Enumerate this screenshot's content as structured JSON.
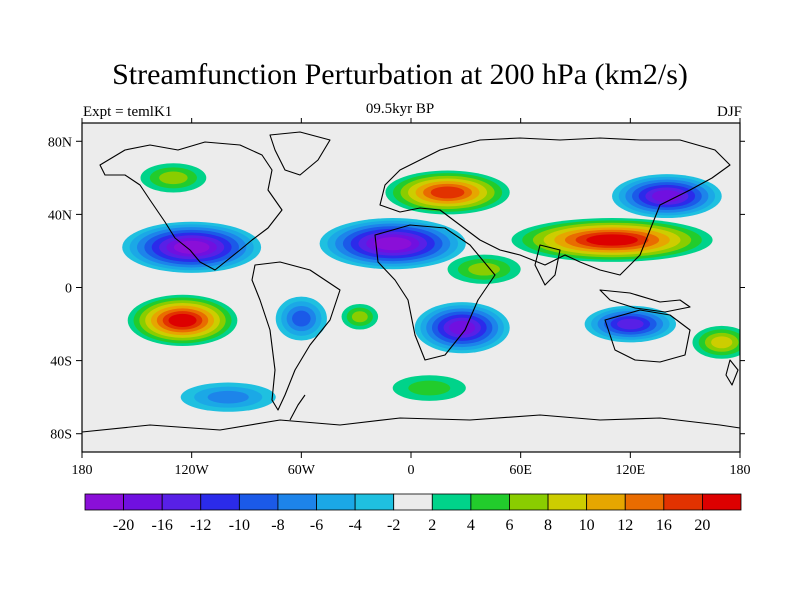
{
  "title": "Streamfunction Perturbation at 200 hPa (km2/s)",
  "subtitle_left": "Expt = temlK1",
  "subtitle_center": "09.5kyr BP",
  "subtitle_right": "DJF",
  "lon_ticks": [
    {
      "value": -180,
      "label": "180"
    },
    {
      "value": -120,
      "label": "120W"
    },
    {
      "value": -60,
      "label": "60W"
    },
    {
      "value": 0,
      "label": "0"
    },
    {
      "value": 60,
      "label": "60E"
    },
    {
      "value": 120,
      "label": "120E"
    },
    {
      "value": 180,
      "label": "180"
    }
  ],
  "lat_ticks": [
    {
      "value": 80,
      "label": "80N"
    },
    {
      "value": 40,
      "label": "40N"
    },
    {
      "value": 0,
      "label": "0"
    },
    {
      "value": -40,
      "label": "40S"
    },
    {
      "value": -80,
      "label": "80S"
    }
  ],
  "colorbar": {
    "colors": [
      "#8a0fd8",
      "#7010e0",
      "#5820e6",
      "#2b2bea",
      "#1b5ae8",
      "#1d84ea",
      "#1ba8e6",
      "#1fc0e0",
      "#ececec",
      "#00d38a",
      "#22cc2c",
      "#8acd00",
      "#cdcd00",
      "#e6a600",
      "#e96c00",
      "#e23200",
      "#dd0000"
    ],
    "labels": [
      "-20",
      "-16",
      "-12",
      "-10",
      "-8",
      "-6",
      "-4",
      "-2",
      "2",
      "4",
      "6",
      "8",
      "10",
      "12",
      "16",
      "20"
    ]
  },
  "chart_data": {
    "type": "heatmap",
    "variable": "Streamfunction Perturbation at 200 hPa (km2/s)",
    "xlim": [
      -180,
      180
    ],
    "ylim": [
      -90,
      90
    ],
    "levels": [
      -20,
      -16,
      -12,
      -10,
      -8,
      -6,
      -4,
      -2,
      2,
      4,
      6,
      8,
      10,
      12,
      16,
      20
    ],
    "features": [
      {
        "lon": -120,
        "lat": 22,
        "value": -20,
        "spread_lon": 38,
        "spread_lat": 14
      },
      {
        "lon": -10,
        "lat": 24,
        "value": -20,
        "spread_lon": 40,
        "spread_lat": 14
      },
      {
        "lon": 140,
        "lat": 50,
        "value": -18,
        "spread_lon": 30,
        "spread_lat": 12
      },
      {
        "lon": 28,
        "lat": -22,
        "value": -18,
        "spread_lon": 26,
        "spread_lat": 14
      },
      {
        "lon": 120,
        "lat": -20,
        "value": -14,
        "spread_lon": 25,
        "spread_lat": 10
      },
      {
        "lon": -60,
        "lat": -17,
        "value": -8,
        "spread_lon": 14,
        "spread_lat": 12
      },
      {
        "lon": 20,
        "lat": 52,
        "value": 16,
        "spread_lon": 34,
        "spread_lat": 12
      },
      {
        "lon": 110,
        "lat": 26,
        "value": 20,
        "spread_lon": 55,
        "spread_lat": 12
      },
      {
        "lon": -125,
        "lat": -18,
        "value": 20,
        "spread_lon": 30,
        "spread_lat": 14
      },
      {
        "lon": -130,
        "lat": 60,
        "value": 6,
        "spread_lon": 18,
        "spread_lat": 8
      },
      {
        "lon": 40,
        "lat": 10,
        "value": 6,
        "spread_lon": 20,
        "spread_lat": 8
      },
      {
        "lon": -28,
        "lat": -16,
        "value": 6,
        "spread_lon": 10,
        "spread_lat": 7
      },
      {
        "lon": 170,
        "lat": -30,
        "value": 8,
        "spread_lon": 16,
        "spread_lat": 9
      },
      {
        "lon": -100,
        "lat": -60,
        "value": -6,
        "spread_lon": 26,
        "spread_lat": 8
      },
      {
        "lon": 10,
        "lat": -55,
        "value": 4,
        "spread_lon": 20,
        "spread_lat": 7
      }
    ]
  }
}
